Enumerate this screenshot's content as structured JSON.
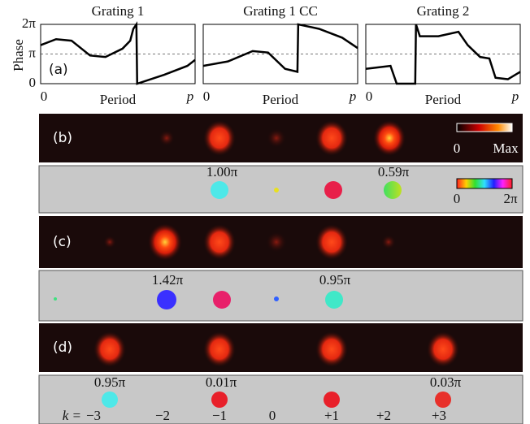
{
  "chart_data": [
    {
      "type": "line",
      "title": "Grating 1",
      "ylabel": "Phase",
      "xlabel": "Period",
      "panel_label": "(a)",
      "color": "#000000",
      "x": [
        0,
        0.1,
        0.2,
        0.32,
        0.42,
        0.53,
        0.58,
        0.6,
        0.62,
        0.625,
        0.8,
        0.95,
        1
      ],
      "values": [
        1.3,
        1.5,
        1.45,
        0.95,
        0.9,
        1.18,
        1.45,
        1.85,
        2.0,
        0,
        0.3,
        0.6,
        0.8
      ],
      "xlim": [
        0,
        1
      ],
      "ylim": [
        0,
        2
      ],
      "xticks": [
        0,
        {
          "value": 1,
          "label": "p"
        }
      ],
      "yticks": [
        0,
        {
          "value": 1,
          "label": "π"
        },
        {
          "value": 2,
          "label": "2π"
        }
      ],
      "grid": true
    },
    {
      "type": "line",
      "title": "Grating 1 CC",
      "xlabel": "Period",
      "color": "#000000",
      "x": [
        0,
        0.16,
        0.32,
        0.42,
        0.53,
        0.61,
        0.615,
        0.75,
        0.9,
        1
      ],
      "values": [
        0.6,
        0.75,
        1.1,
        1.05,
        0.5,
        0.4,
        2.0,
        1.85,
        1.55,
        1.2
      ],
      "xlim": [
        0,
        1
      ],
      "ylim": [
        0,
        2
      ],
      "xticks": [
        0,
        {
          "value": 1,
          "label": "p"
        }
      ],
      "yticks": [
        0,
        1,
        2
      ],
      "grid": true
    },
    {
      "type": "line",
      "title": "Grating 2",
      "xlabel": "Period",
      "color": "#000000",
      "x": [
        0,
        0.16,
        0.2,
        0.32,
        0.325,
        0.35,
        0.47,
        0.6,
        0.66,
        0.74,
        0.8,
        0.84,
        0.92,
        1
      ],
      "values": [
        0.5,
        0.6,
        0,
        0,
        2.0,
        1.6,
        1.6,
        1.75,
        1.3,
        0.9,
        0.85,
        0.2,
        0.15,
        0.4
      ],
      "xlim": [
        0,
        1
      ],
      "ylim": [
        0,
        2
      ],
      "xticks": [
        0,
        {
          "value": 1,
          "label": "p"
        }
      ],
      "yticks": [
        0,
        1,
        2
      ],
      "grid": true
    }
  ],
  "panels": {
    "b": {
      "label": "(b)",
      "phase_labels": [
        "1.00π",
        "0.59π"
      ]
    },
    "c": {
      "label": "(c)",
      "phase_labels": [
        "1.42π",
        "0.95π"
      ]
    },
    "d": {
      "label": "(d)",
      "phase_labels": [
        "0.95π",
        "0.01π",
        "0.03π"
      ]
    }
  },
  "colorbars": {
    "intensity": [
      "0",
      "Max"
    ],
    "phase": [
      "0",
      "2π"
    ]
  },
  "orders": {
    "prefix": "k =",
    "labels": [
      "−3",
      "−2",
      "−1",
      "0",
      "+1",
      "+2",
      "+3"
    ]
  }
}
